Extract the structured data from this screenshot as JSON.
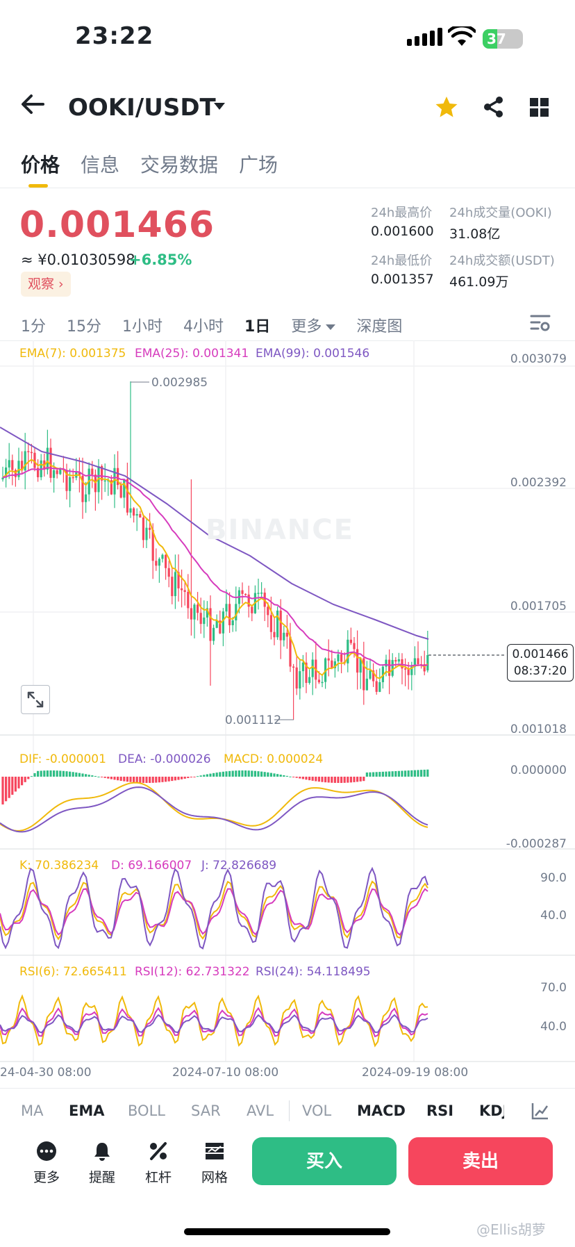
{
  "status": {
    "time": "23:22",
    "battery": "37"
  },
  "header": {
    "pair": "OOKI/USDT"
  },
  "tabs": [
    "价格",
    "信息",
    "交易数据",
    "广场"
  ],
  "price": {
    "last": "0.001466",
    "cny": "≈ ¥0.01030598",
    "change": "+6.85%",
    "watch": "观察 ›"
  },
  "stats": {
    "high_label": "24h最高价",
    "high": "0.001600",
    "vol_base_label": "24h成交量(OOKI)",
    "vol_base": "31.08亿",
    "low_label": "24h最低价",
    "low": "0.001357",
    "vol_quote_label": "24h成交额(USDT)",
    "vol_quote": "461.09万"
  },
  "intervals": {
    "i1": "1分",
    "i2": "15分",
    "i3": "1小时",
    "i4": "4小时",
    "i5": "1日",
    "more": "更多",
    "depth": "深度图"
  },
  "ema": {
    "ema7": "EMA(7): 0.001375",
    "ema25": "EMA(25): 0.001341",
    "ema99": "EMA(99): 0.001546"
  },
  "price_axis": [
    "0.003079",
    "0.002392",
    "0.001705",
    "0.001018"
  ],
  "marks": {
    "max": "0.002985",
    "min": "0.001112"
  },
  "current": {
    "price": "0.001466",
    "countdown": "08:37:20"
  },
  "watermark": "BINANCE",
  "macd": {
    "dif": "DIF: -0.000001",
    "dea": "DEA: -0.000026",
    "macd": "MACD: 0.000024",
    "top": "0.000000",
    "bottom": "-0.000287"
  },
  "kdj": {
    "k": "K: 70.386234",
    "d": "D: 69.166007",
    "j": "J: 72.826689",
    "top": "90.0",
    "bottom": "40.0"
  },
  "rsi": {
    "r6": "RSI(6): 72.665411",
    "r12": "RSI(12): 62.731322",
    "r24": "RSI(24): 54.118495",
    "top": "70.0",
    "bottom": "40.0"
  },
  "dates": {
    "d1": "24-04-30 08:00",
    "d2": "2024-07-10 08:00",
    "d3": "2024-09-19 08:00"
  },
  "indicator_tabs": {
    "ma": "MA",
    "ema": "EMA",
    "boll": "BOLL",
    "sar": "SAR",
    "avl": "AVL",
    "vol": "VOL",
    "macd": "MACD",
    "rsi": "RSI",
    "kdj": "KDJ"
  },
  "bottom": {
    "more": "更多",
    "alert": "提醒",
    "leverage": "杠杆",
    "grid": "网格",
    "buy": "买入",
    "sell": "卖出"
  },
  "corner_watermark": "@Ellis胡萝",
  "colors": {
    "up": "#2ebd85",
    "down": "#f6465d",
    "ema7": "#f0b90b",
    "ema25": "#d63bbd",
    "ema99": "#7e57c2"
  },
  "chart_data": {
    "type": "candlestick",
    "period": "1日",
    "y_range": [
      0.001018,
      0.003079
    ],
    "candles": []
  }
}
